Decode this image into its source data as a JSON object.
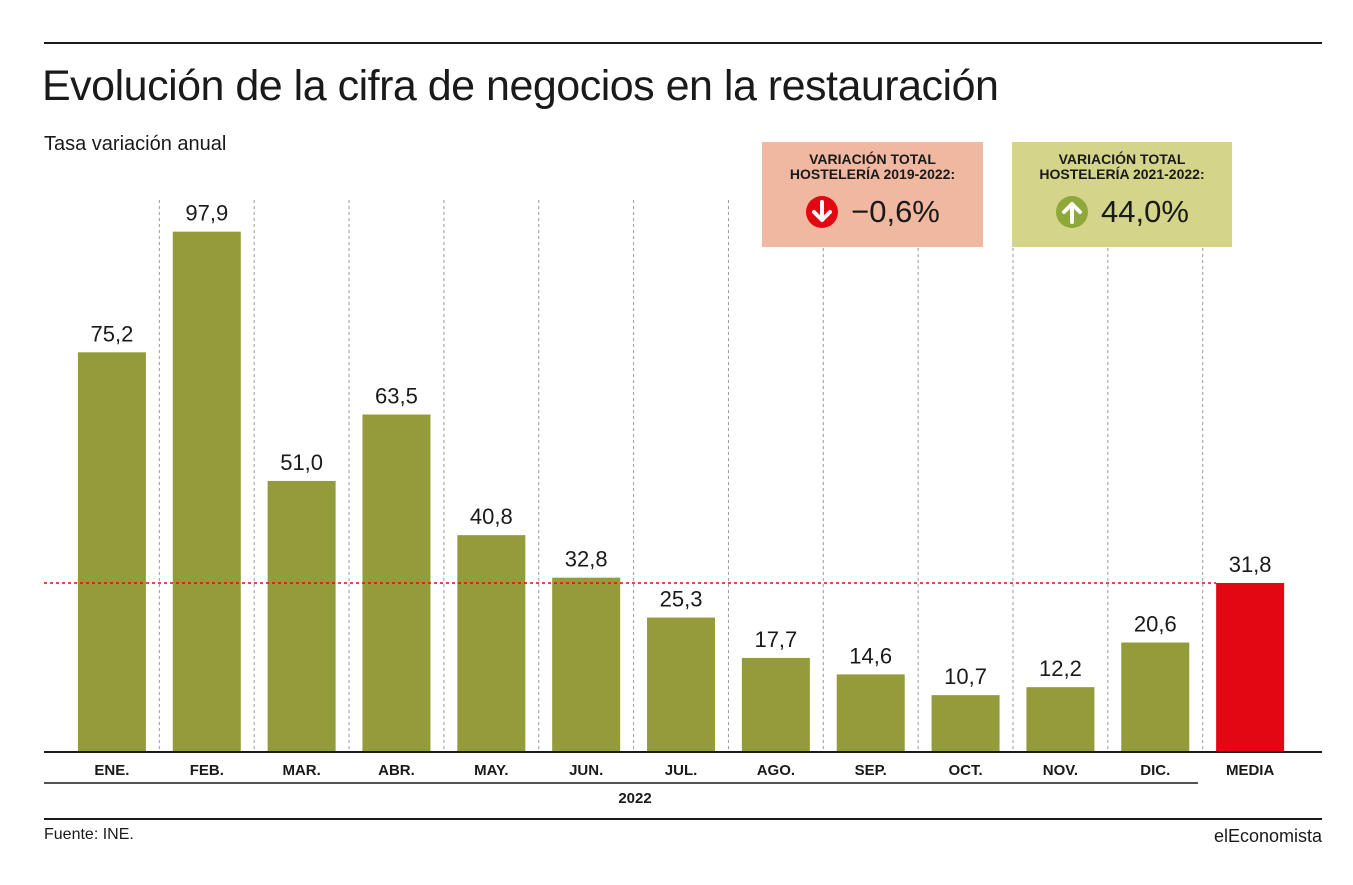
{
  "header": {
    "title": "Evolución de la cifra de negocios en la restauración",
    "subtitle": "Tasa variación anual"
  },
  "boxes": [
    {
      "label": "VARIACIÓN TOTAL\nHOSTELERÍA 2019-2022:",
      "value": "−0,6%",
      "icon": "arrow-down-circle-icon",
      "direction": "down",
      "color": "#f0b8a1",
      "icon_color": "#e30613"
    },
    {
      "label": "VARIACIÓN TOTAL\nHOSTELERÍA 2021-2022:",
      "value": "44,0%",
      "icon": "arrow-up-circle-icon",
      "direction": "up",
      "color": "#d4d48a",
      "icon_color": "#8fa83a"
    }
  ],
  "chart_data": {
    "type": "bar",
    "categories": [
      "ENE.",
      "FEB.",
      "MAR.",
      "ABR.",
      "MAY.",
      "JUN.",
      "JUL.",
      "AGO.",
      "SEP.",
      "OCT.",
      "NOV.",
      "DIC.",
      "MEDIA"
    ],
    "values": [
      75.2,
      97.9,
      51.0,
      63.5,
      40.8,
      32.8,
      25.3,
      17.7,
      14.6,
      10.7,
      12.2,
      20.6,
      31.8
    ],
    "value_labels": [
      "75,2",
      "97,9",
      "51,0",
      "63,5",
      "40,8",
      "32,8",
      "25,3",
      "17,7",
      "14,6",
      "10,7",
      "12,2",
      "20,6",
      "31,8"
    ],
    "ylim": [
      0,
      100
    ],
    "grid": "dotted vertical separators",
    "reference_line": {
      "value": 31.8,
      "color": "#e30613",
      "style": "dotted"
    },
    "colors": {
      "bar": "#949b3a",
      "highlight": "#e30613"
    },
    "highlight_category": "MEDIA",
    "group_label": "2022"
  },
  "footer": {
    "source": "Fuente: INE.",
    "brand": "elEconomista"
  }
}
